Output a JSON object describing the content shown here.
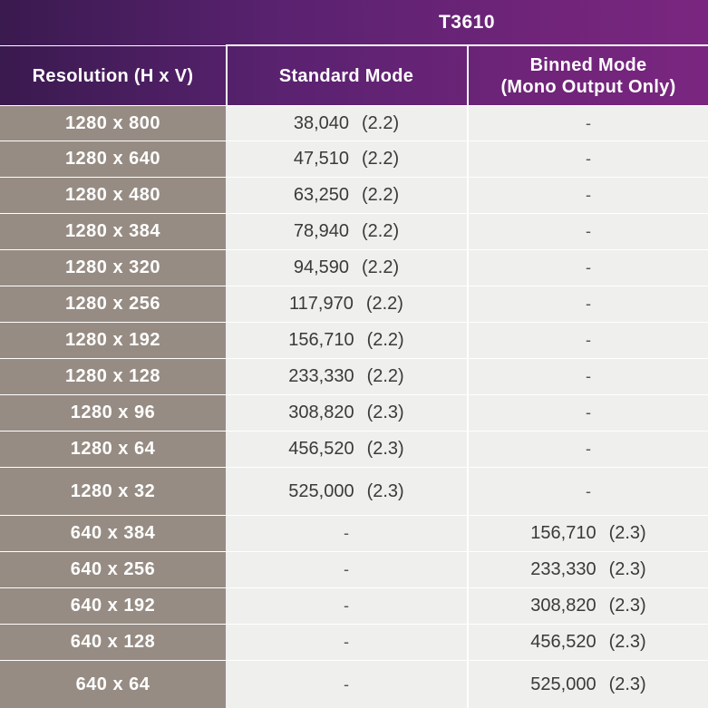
{
  "header": {
    "model": "T3610",
    "col_resolution": "Resolution (H x V)",
    "col_standard": "Standard Mode",
    "col_binned_line1": "Binned Mode",
    "col_binned_line2": "(Mono Output Only)"
  },
  "rows": [
    {
      "res": "1280 x 800",
      "std_val": "38,040",
      "std_note": "(2.2)",
      "bin_val": "-",
      "bin_note": ""
    },
    {
      "res": "1280 x 640",
      "std_val": "47,510",
      "std_note": "(2.2)",
      "bin_val": "-",
      "bin_note": ""
    },
    {
      "res": "1280 x 480",
      "std_val": "63,250",
      "std_note": "(2.2)",
      "bin_val": "-",
      "bin_note": ""
    },
    {
      "res": "1280 x 384",
      "std_val": "78,940",
      "std_note": "(2.2)",
      "bin_val": "-",
      "bin_note": ""
    },
    {
      "res": "1280 x 320",
      "std_val": "94,590",
      "std_note": "(2.2)",
      "bin_val": "-",
      "bin_note": ""
    },
    {
      "res": "1280 x 256",
      "std_val": "117,970",
      "std_note": "(2.2)",
      "bin_val": "-",
      "bin_note": ""
    },
    {
      "res": "1280 x 192",
      "std_val": "156,710",
      "std_note": "(2.2)",
      "bin_val": "-",
      "bin_note": ""
    },
    {
      "res": "1280 x 128",
      "std_val": "233,330",
      "std_note": "(2.2)",
      "bin_val": "-",
      "bin_note": ""
    },
    {
      "res": "1280 x 96",
      "std_val": "308,820",
      "std_note": "(2.3)",
      "bin_val": "-",
      "bin_note": ""
    },
    {
      "res": "1280 x 64",
      "std_val": "456,520",
      "std_note": "(2.3)",
      "bin_val": "-",
      "bin_note": ""
    },
    {
      "res": "1280 x 32",
      "std_val": "525,000",
      "std_note": "(2.3)",
      "bin_val": "-",
      "bin_note": ""
    },
    {
      "res": "640 x 384",
      "std_val": "-",
      "std_note": "",
      "bin_val": "156,710",
      "bin_note": "(2.3)"
    },
    {
      "res": "640 x 256",
      "std_val": "-",
      "std_note": "",
      "bin_val": "233,330",
      "bin_note": "(2.3)"
    },
    {
      "res": "640 x 192",
      "std_val": "-",
      "std_note": "",
      "bin_val": "308,820",
      "bin_note": "(2.3)"
    },
    {
      "res": "640 x 128",
      "std_val": "-",
      "std_note": "",
      "bin_val": "456,520",
      "bin_note": "(2.3)"
    },
    {
      "res": "640 x 64",
      "std_val": "-",
      "std_note": "",
      "bin_val": "525,000",
      "bin_note": "(2.3)"
    }
  ],
  "colors": {
    "header_dark": "#3a1a4f",
    "header_purple": "#7a2680",
    "resolution_cell": "#968c83",
    "data_cell": "#efefed"
  }
}
